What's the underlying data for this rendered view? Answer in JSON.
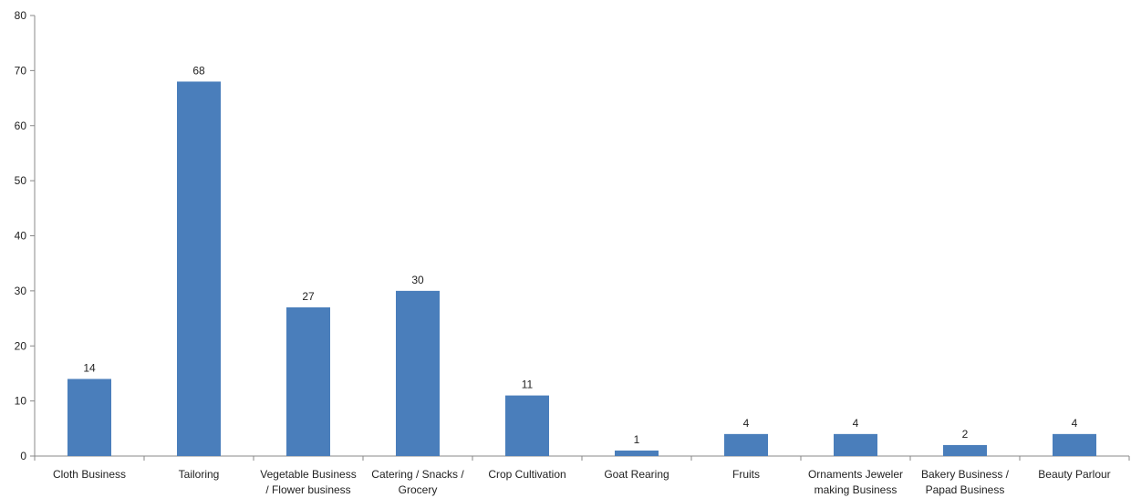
{
  "chart_data": {
    "type": "bar",
    "title": "",
    "xlabel": "",
    "ylabel": "",
    "ylim": [
      0,
      80
    ],
    "yticks": [
      0,
      10,
      20,
      30,
      40,
      50,
      60,
      70,
      80
    ],
    "grid": false,
    "legend": "none",
    "bar_color": "#4a7ebb",
    "categories": [
      [
        "Cloth Business"
      ],
      [
        "Tailoring"
      ],
      [
        "Vegetable Business",
        "/ Flower business"
      ],
      [
        "Catering / Snacks /",
        "Grocery"
      ],
      [
        "Crop Cultivation"
      ],
      [
        "Goat Rearing"
      ],
      [
        "Fruits"
      ],
      [
        "Ornaments Jeweler",
        "making Business"
      ],
      [
        "Bakery Business /",
        "Papad Business"
      ],
      [
        "Beauty Parlour"
      ]
    ],
    "values": [
      14,
      68,
      27,
      30,
      11,
      1,
      4,
      4,
      2,
      4
    ]
  }
}
